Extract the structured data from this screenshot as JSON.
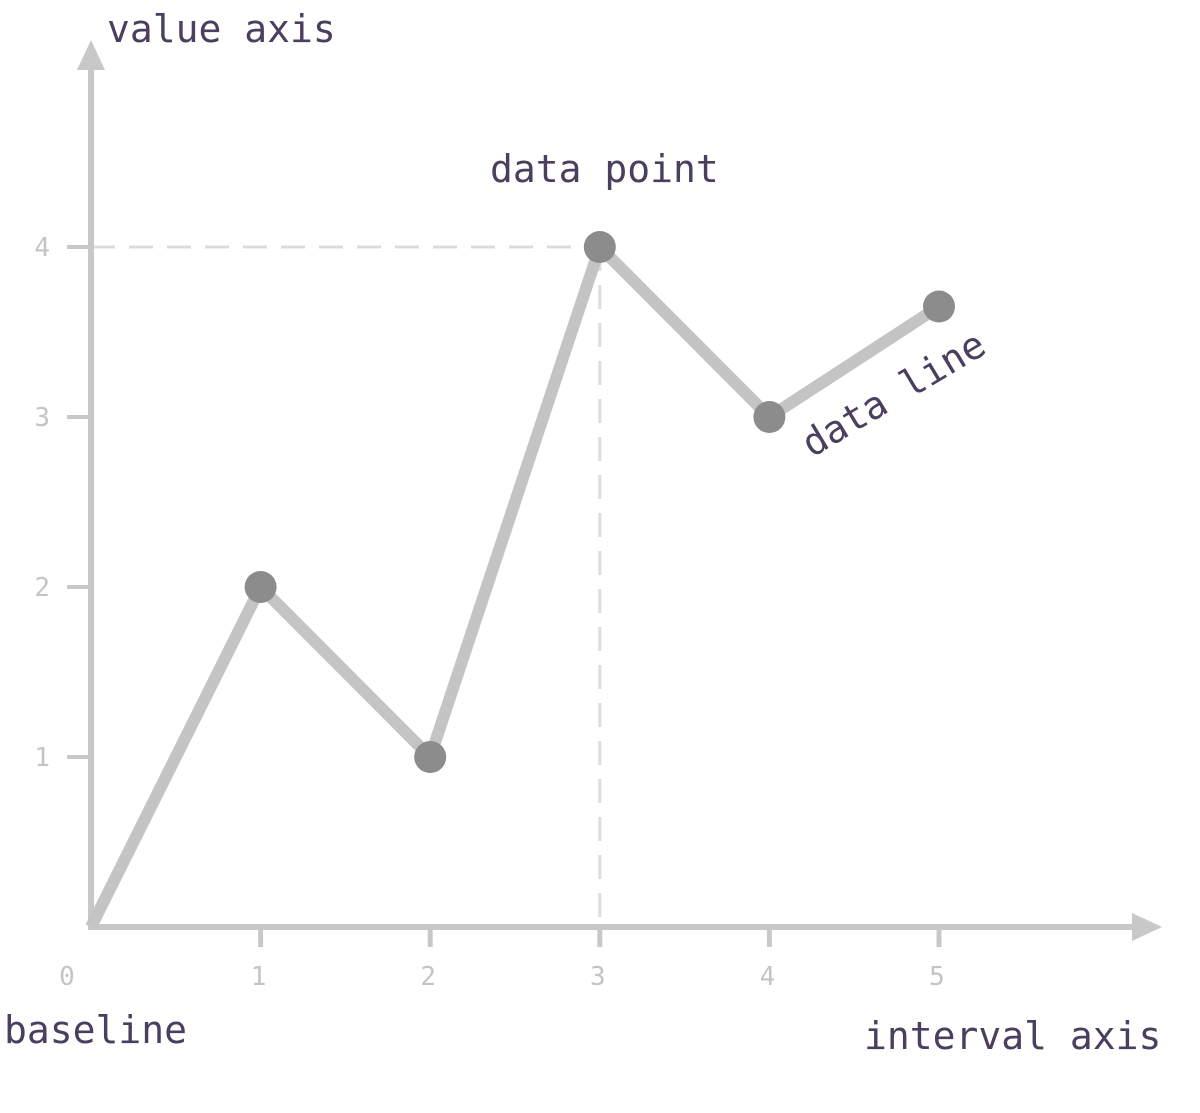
{
  "chart_data": {
    "type": "line",
    "x": [
      0,
      1,
      2,
      3,
      4,
      5
    ],
    "values": [
      0,
      2,
      1,
      4,
      3,
      3.65
    ],
    "marked_points": [
      1,
      2,
      3,
      4,
      5
    ],
    "xlim": [
      0,
      5
    ],
    "ylim": [
      0,
      4
    ],
    "x_ticks": [
      "0",
      "1",
      "2",
      "3",
      "4",
      "5"
    ],
    "y_ticks": [
      "1",
      "2",
      "3",
      "4"
    ],
    "highlight": {
      "x": 3,
      "y": 4
    },
    "labels": {
      "value_axis": "value axis",
      "interval_axis": "interval axis",
      "baseline": "baseline",
      "data_point": "data point",
      "data_line": "data line"
    },
    "colors": {
      "axis": "#c8c8c8",
      "line": "#c4c4c4",
      "point": "#8c8c8c",
      "guide": "#dcdcdc",
      "tick_text": "#c4c4c4",
      "annotation_text": "#4a3f5e"
    }
  }
}
